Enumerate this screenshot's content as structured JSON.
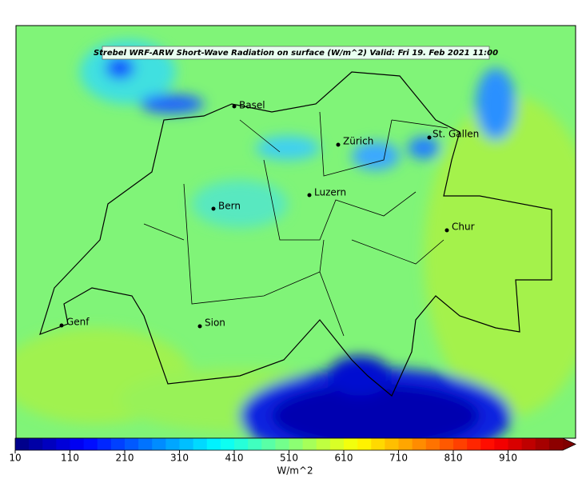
{
  "title": "Strebel WRF-ARW Short-Wave Radiation on surface (W/m^2)   Valid: Fri 19. Feb 2021 11:00",
  "cities": [
    "Basel",
    "Zürich",
    "St. Gallen",
    "Bern",
    "Luzern",
    "Chur",
    "Genf",
    "Sion"
  ],
  "colorbar": {
    "range": [
      10,
      1010
    ],
    "ticks": [
      10,
      110,
      210,
      310,
      410,
      510,
      610,
      710,
      810,
      910
    ],
    "label": "W/m^2",
    "colormap": "jet"
  }
}
